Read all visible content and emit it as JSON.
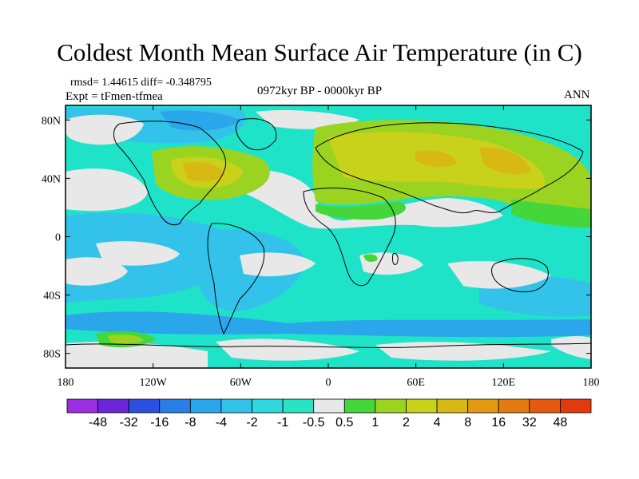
{
  "title": "Coldest Month Mean Surface Air Temperature (in C)",
  "stats": "rmsd= 1.44615 diff= -0.348795",
  "experiment": "Expt = tFmen-tfmea",
  "period": "0972kyr BP - 0000kyr BP",
  "season": "ANN",
  "map": {
    "lon_range": [
      -180,
      180
    ],
    "lat_range": [
      -90,
      90
    ],
    "lon_ticks": [
      {
        "value": -180,
        "label": "180"
      },
      {
        "value": -120,
        "label": "120W"
      },
      {
        "value": -60,
        "label": "60W"
      },
      {
        "value": 0,
        "label": "0"
      },
      {
        "value": 60,
        "label": "60E"
      },
      {
        "value": 120,
        "label": "120E"
      },
      {
        "value": 180,
        "label": "180"
      }
    ],
    "lat_ticks": [
      {
        "value": 80,
        "label": "80N"
      },
      {
        "value": 40,
        "label": "40N"
      },
      {
        "value": 0,
        "label": "0"
      },
      {
        "value": -40,
        "label": "40S"
      },
      {
        "value": -80,
        "label": "80S"
      }
    ],
    "background_color": "#1fe3c8"
  },
  "colorbar": {
    "colors": [
      "#9d2de0",
      "#6a27d8",
      "#2d4fe0",
      "#2a7fe6",
      "#2aa6ea",
      "#33c3ea",
      "#2ed8de",
      "#29e3c3",
      "#e8e8e8",
      "#45d63a",
      "#9ad421",
      "#c8d21a",
      "#d8b914",
      "#e39a10",
      "#e57a10",
      "#e65a10",
      "#e23a0c"
    ],
    "labels": [
      "-48",
      "-32",
      "-16",
      "-8",
      "-4",
      "-2",
      "-1",
      "-0.5",
      "0.5",
      "1",
      "2",
      "4",
      "8",
      "16",
      "32",
      "48"
    ]
  }
}
